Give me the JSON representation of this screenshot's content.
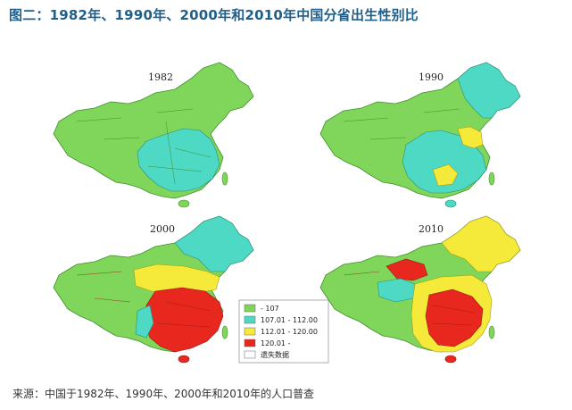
{
  "title": "图二：1982年、1990年、2000年和2010年中国分省出生性别比",
  "source": "来源：中国于1982年、1990年、2000年和2010年的人口普查",
  "maps": [
    {
      "year": "1982"
    },
    {
      "year": "1990"
    },
    {
      "year": "2000"
    },
    {
      "year": "2010"
    }
  ],
  "legend": [
    {
      "label": "- 107",
      "color": "#7fd65a"
    },
    {
      "label": "107.01 - 112.00",
      "color": "#4dd9c4"
    },
    {
      "label": "112.01 - 120.00",
      "color": "#f5ea3a"
    },
    {
      "label": "120.01 -",
      "color": "#e8271f"
    },
    {
      "label": "遗失数据",
      "color": "#ffffff"
    }
  ],
  "colors": {
    "title": "#1f5f8a",
    "green": "#7fd65a",
    "cyan": "#4dd9c4",
    "yellow": "#f5ea3a",
    "red": "#e8271f"
  }
}
